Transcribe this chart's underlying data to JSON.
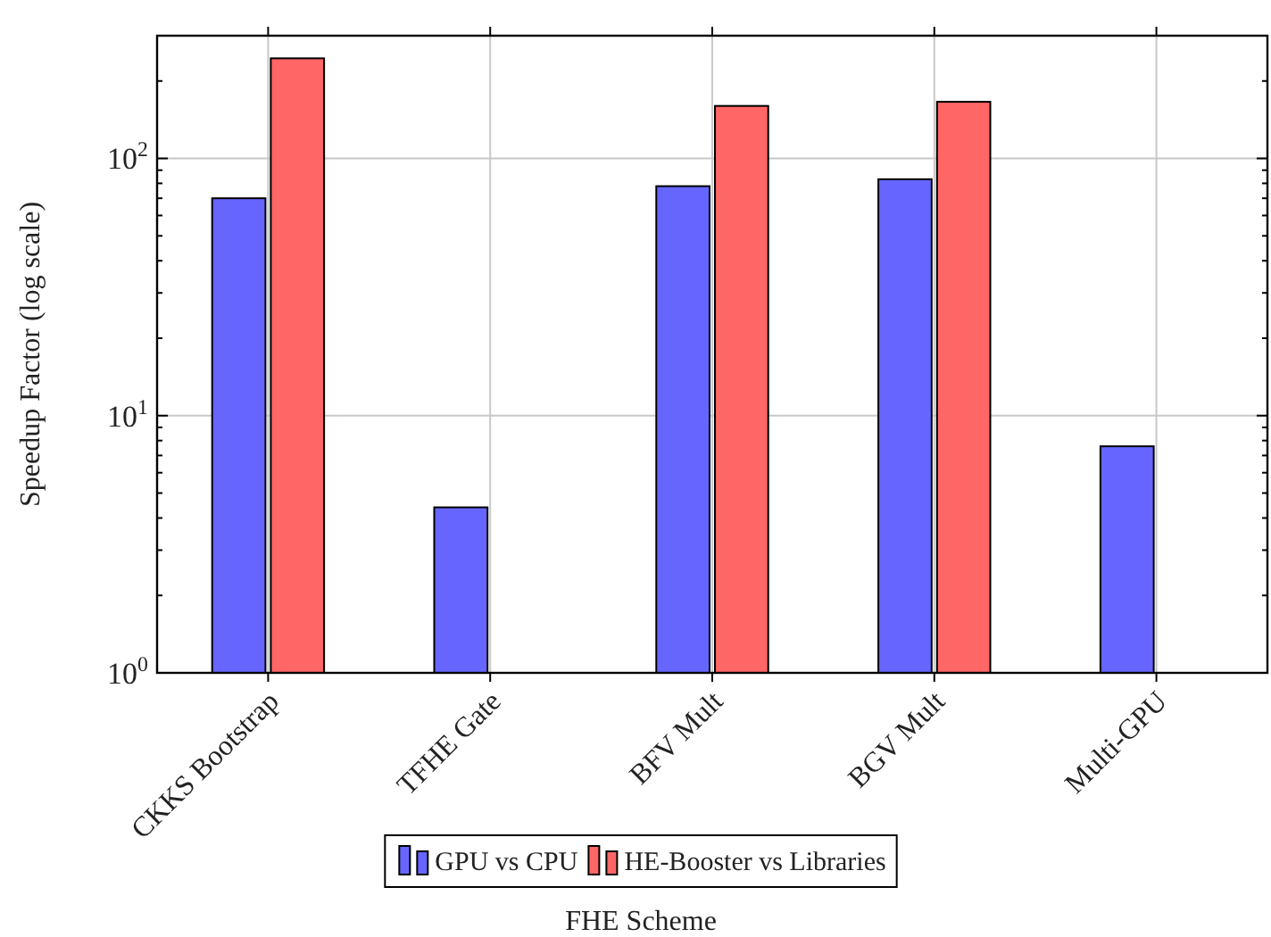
{
  "chart_data": {
    "type": "bar",
    "xlabel": "FHE Scheme",
    "ylabel": "Speedup Factor (log scale)",
    "categories": [
      "CKKS Bootstrap",
      "TFHE Gate",
      "BFV Mult",
      "BGV Mult",
      "Multi-GPU"
    ],
    "series": [
      {
        "name": "GPU vs CPU",
        "color": "#6666ff",
        "values": [
          70,
          4.4,
          78,
          83,
          7.6
        ]
      },
      {
        "name": "HE-Booster vs Libraries",
        "color": "#ff6666",
        "values": [
          245,
          null,
          160,
          166,
          null
        ]
      }
    ],
    "log": true,
    "ylim": [
      1,
      300
    ],
    "yticks": [
      {
        "value": 1,
        "label": "10$^{0}$"
      },
      {
        "value": 2,
        "label": null
      },
      {
        "value": 3,
        "label": null
      },
      {
        "value": 4,
        "label": null
      },
      {
        "value": 5,
        "label": null
      },
      {
        "value": 6,
        "label": null
      },
      {
        "value": 7,
        "label": null
      },
      {
        "value": 8,
        "label": null
      },
      {
        "value": 9,
        "label": null
      },
      {
        "value": 10,
        "label": "10$^{1}$"
      },
      {
        "value": 20,
        "label": null
      },
      {
        "value": 30,
        "label": null
      },
      {
        "value": 40,
        "label": null
      },
      {
        "value": 50,
        "label": null
      },
      {
        "value": 60,
        "label": null
      },
      {
        "value": 70,
        "label": null
      },
      {
        "value": 80,
        "label": null
      },
      {
        "value": 90,
        "label": null
      },
      {
        "value": 100,
        "label": "10$^{2}$"
      },
      {
        "value": 200,
        "label": null
      },
      {
        "value": 300,
        "label": null
      }
    ],
    "grid": true,
    "legend": "bottom"
  }
}
